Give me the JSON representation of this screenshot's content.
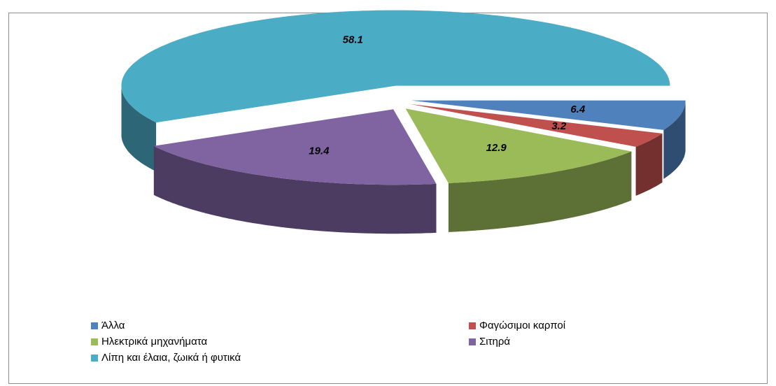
{
  "chart_data": {
    "type": "pie",
    "categories": [
      "Άλλα",
      "Φαγώσιμοι καρποί",
      "Ηλεκτρικά μηχανήματα",
      "Σιτηρά",
      "Λίπη και έλαια, ζωικά ή φυτικά"
    ],
    "values": [
      6.4,
      3.2,
      12.9,
      19.4,
      58.1
    ],
    "colors": [
      "#4f81bd",
      "#c0504d",
      "#9bbb59",
      "#8064a2",
      "#4bacc6"
    ],
    "legend": "bottom"
  }
}
